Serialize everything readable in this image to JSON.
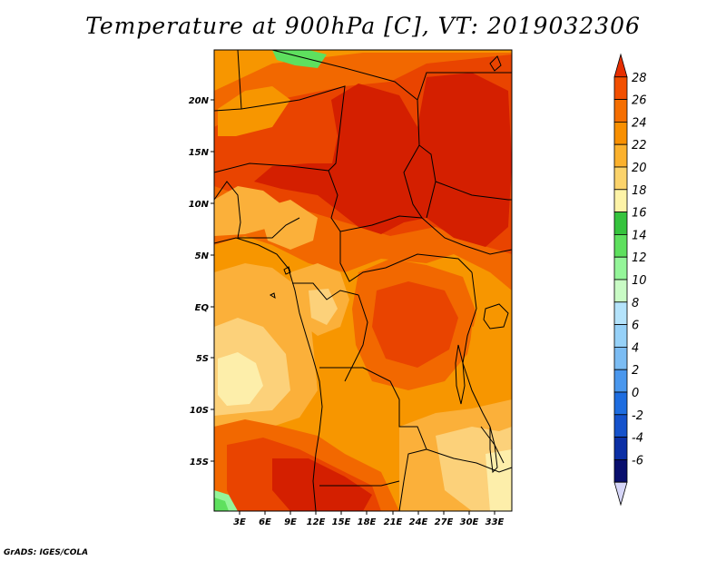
{
  "title": "Temperature at 900hPa [C], VT: 2019032306",
  "credit": "GrADS: IGES/COLA",
  "lat_labels": [
    "20N",
    "15N",
    "10N",
    "5N",
    "EQ",
    "5S",
    "10S",
    "15S"
  ],
  "lon_labels": [
    "3E",
    "6E",
    "9E",
    "12E",
    "15E",
    "18E",
    "21E",
    "24E",
    "27E",
    "30E",
    "33E"
  ],
  "colorbar": {
    "levels": [
      "28",
      "26",
      "24",
      "22",
      "20",
      "18",
      "16",
      "14",
      "12",
      "10",
      "8",
      "6",
      "4",
      "2",
      "0",
      "-2",
      "-4",
      "-6"
    ],
    "colors": [
      "#e62e00",
      "#f24f00",
      "#f56e00",
      "#f88f00",
      "#fbb12d",
      "#fbd36b",
      "#fdf3a7",
      "#35c33d",
      "#5ee05e",
      "#94f599",
      "#c9fbc5",
      "#b4e3fb",
      "#96d1f8",
      "#7bbcf3",
      "#4a97ed",
      "#1e6de0",
      "#1552cc",
      "#0b2fa5",
      "#090f6e",
      "#d6d6f8"
    ]
  },
  "map": {
    "type": "filled-contour",
    "variable": "Temperature at 900hPa",
    "units": "C",
    "valid_time": "2019032306",
    "colors": {
      "hot28": "#d41f00",
      "c26": "#e94400",
      "c24": "#f26800",
      "c22": "#f79600",
      "c20": "#fbb03a",
      "c18": "#fcd17a",
      "c16": "#fdeeaa",
      "green": "#5ee05e",
      "light_green": "#94f599"
    }
  }
}
